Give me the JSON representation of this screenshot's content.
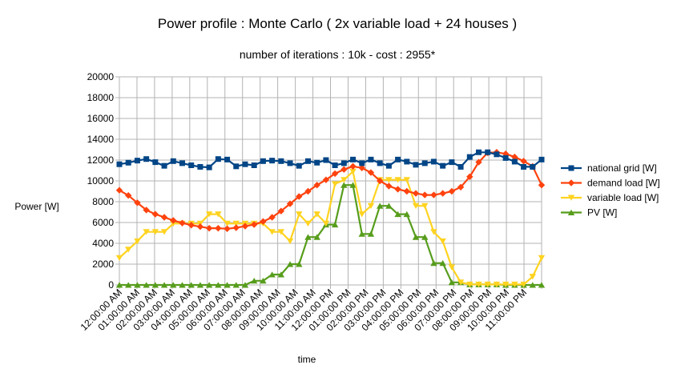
{
  "chart_data": {
    "type": "line",
    "title": "Power profile : Monte Carlo ( 2x variable load + 24 houses )",
    "subtitle": "number of iterations : 10k - cost : 2955*",
    "xlabel": "time",
    "ylabel": "Power [W]",
    "ylim": [
      0,
      20000
    ],
    "yticks": [
      "0",
      "2000",
      "4000",
      "6000",
      "8000",
      "10000",
      "12000",
      "14000",
      "16000",
      "18000",
      "20000"
    ],
    "xtick_labels": [
      "12:00:00 AM",
      "01:00:00 AM",
      "02:00:00 AM",
      "03:00:00 AM",
      "04:00:00 AM",
      "05:00:00 AM",
      "06:00:00 AM",
      "07:00:00 AM",
      "08:00:00 AM",
      "09:00:00 AM",
      "10:00:00 AM",
      "11:00:00 AM",
      "12:00:00 PM",
      "01:00:00 PM",
      "02:00:00 PM",
      "03:00:00 PM",
      "04:00:00 PM",
      "05:00:00 PM",
      "06:00:00 PM",
      "07:00:00 PM",
      "08:00:00 PM",
      "09:00:00 PM",
      "10:00:00 PM",
      "11:00:00 PM"
    ],
    "grid": true,
    "legend_position": "right",
    "series": [
      {
        "name": "national grid [W]",
        "color": "#004586",
        "marker": "square",
        "values": [
          11600,
          11750,
          11950,
          12100,
          11800,
          11450,
          11900,
          11700,
          11500,
          11350,
          11300,
          12100,
          12050,
          11400,
          11600,
          11500,
          11900,
          11950,
          11900,
          11700,
          11450,
          11900,
          11750,
          12000,
          11500,
          11700,
          12050,
          11700,
          12050,
          11700,
          11450,
          12050,
          11850,
          11550,
          11700,
          11850,
          11450,
          11800,
          11350,
          12300,
          12750,
          12750,
          12550,
          12200,
          11850,
          11350,
          11350,
          12050
        ]
      },
      {
        "name": "demand load [W]",
        "color": "#ff420e",
        "marker": "diamond",
        "values": [
          9100,
          8600,
          7900,
          7200,
          6800,
          6500,
          6200,
          5950,
          5750,
          5600,
          5450,
          5450,
          5400,
          5500,
          5650,
          5800,
          6100,
          6500,
          7100,
          7800,
          8500,
          9000,
          9600,
          10100,
          10700,
          11100,
          11400,
          11250,
          10800,
          10000,
          9500,
          9200,
          9000,
          8800,
          8650,
          8650,
          8800,
          9000,
          9400,
          10400,
          11800,
          12700,
          12750,
          12600,
          12300,
          11900,
          11400,
          9600
        ]
      },
      {
        "name": "variable load [W]",
        "color": "#ffd320",
        "marker": "triangle-down",
        "values": [
          2600,
          3400,
          4200,
          5100,
          5100,
          5100,
          5900,
          5900,
          5900,
          5900,
          6800,
          6800,
          5900,
          5900,
          5900,
          5900,
          5900,
          5100,
          5100,
          4200,
          6800,
          5900,
          6800,
          5900,
          9700,
          10100,
          10900,
          6800,
          7600,
          10100,
          10100,
          10100,
          10100,
          7600,
          7600,
          5100,
          4200,
          1700,
          250,
          50,
          50,
          50,
          50,
          50,
          50,
          50,
          800,
          2600
        ]
      },
      {
        "name": "PV [W]",
        "color": "#579d1c",
        "marker": "triangle-up",
        "values": [
          0,
          0,
          0,
          0,
          0,
          0,
          0,
          0,
          0,
          0,
          0,
          0,
          0,
          0,
          0,
          400,
          400,
          1000,
          1000,
          2000,
          2000,
          4600,
          4600,
          5800,
          5800,
          9600,
          9600,
          4900,
          4900,
          7600,
          7600,
          6800,
          6800,
          4600,
          4600,
          2100,
          2100,
          250,
          250,
          50,
          50,
          50,
          50,
          0,
          0,
          0,
          0,
          0
        ]
      }
    ]
  }
}
